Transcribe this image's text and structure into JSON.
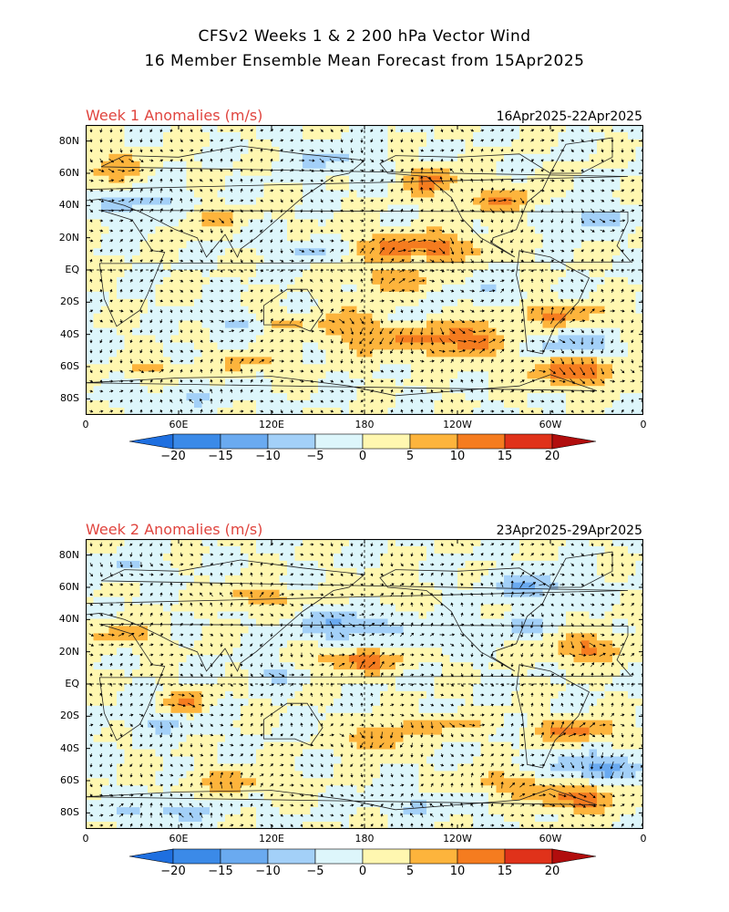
{
  "title": {
    "line1": "CFSv2 Weeks 1 & 2 200 hPa Vector Wind",
    "line2": "16 Member Ensemble Mean Forecast from 15Apr2025"
  },
  "panels": [
    {
      "label": "Week 1 Anomalies (m/s)",
      "dates": "16Apr2025-22Apr2025"
    },
    {
      "label": "Week 2 Anomalies (m/s)",
      "dates": "23Apr2025-29Apr2025"
    }
  ],
  "lat_labels": [
    "80N",
    "60N",
    "40N",
    "20N",
    "EQ",
    "20S",
    "40S",
    "60S",
    "80S"
  ],
  "lon_labels": [
    "0",
    "60E",
    "120E",
    "180",
    "120W",
    "60W",
    "0"
  ],
  "colorbar": {
    "labels": [
      "-20",
      "-15",
      "-10",
      "-5",
      "0",
      "5",
      "10",
      "15",
      "20"
    ],
    "colors": [
      "#1e6fe0",
      "#3b8ae8",
      "#6aaaf0",
      "#a3d0f8",
      "#ddf6fb",
      "#fff7b0",
      "#fdb43c",
      "#f57c1f",
      "#e0321a",
      "#b10d0d"
    ]
  }
}
